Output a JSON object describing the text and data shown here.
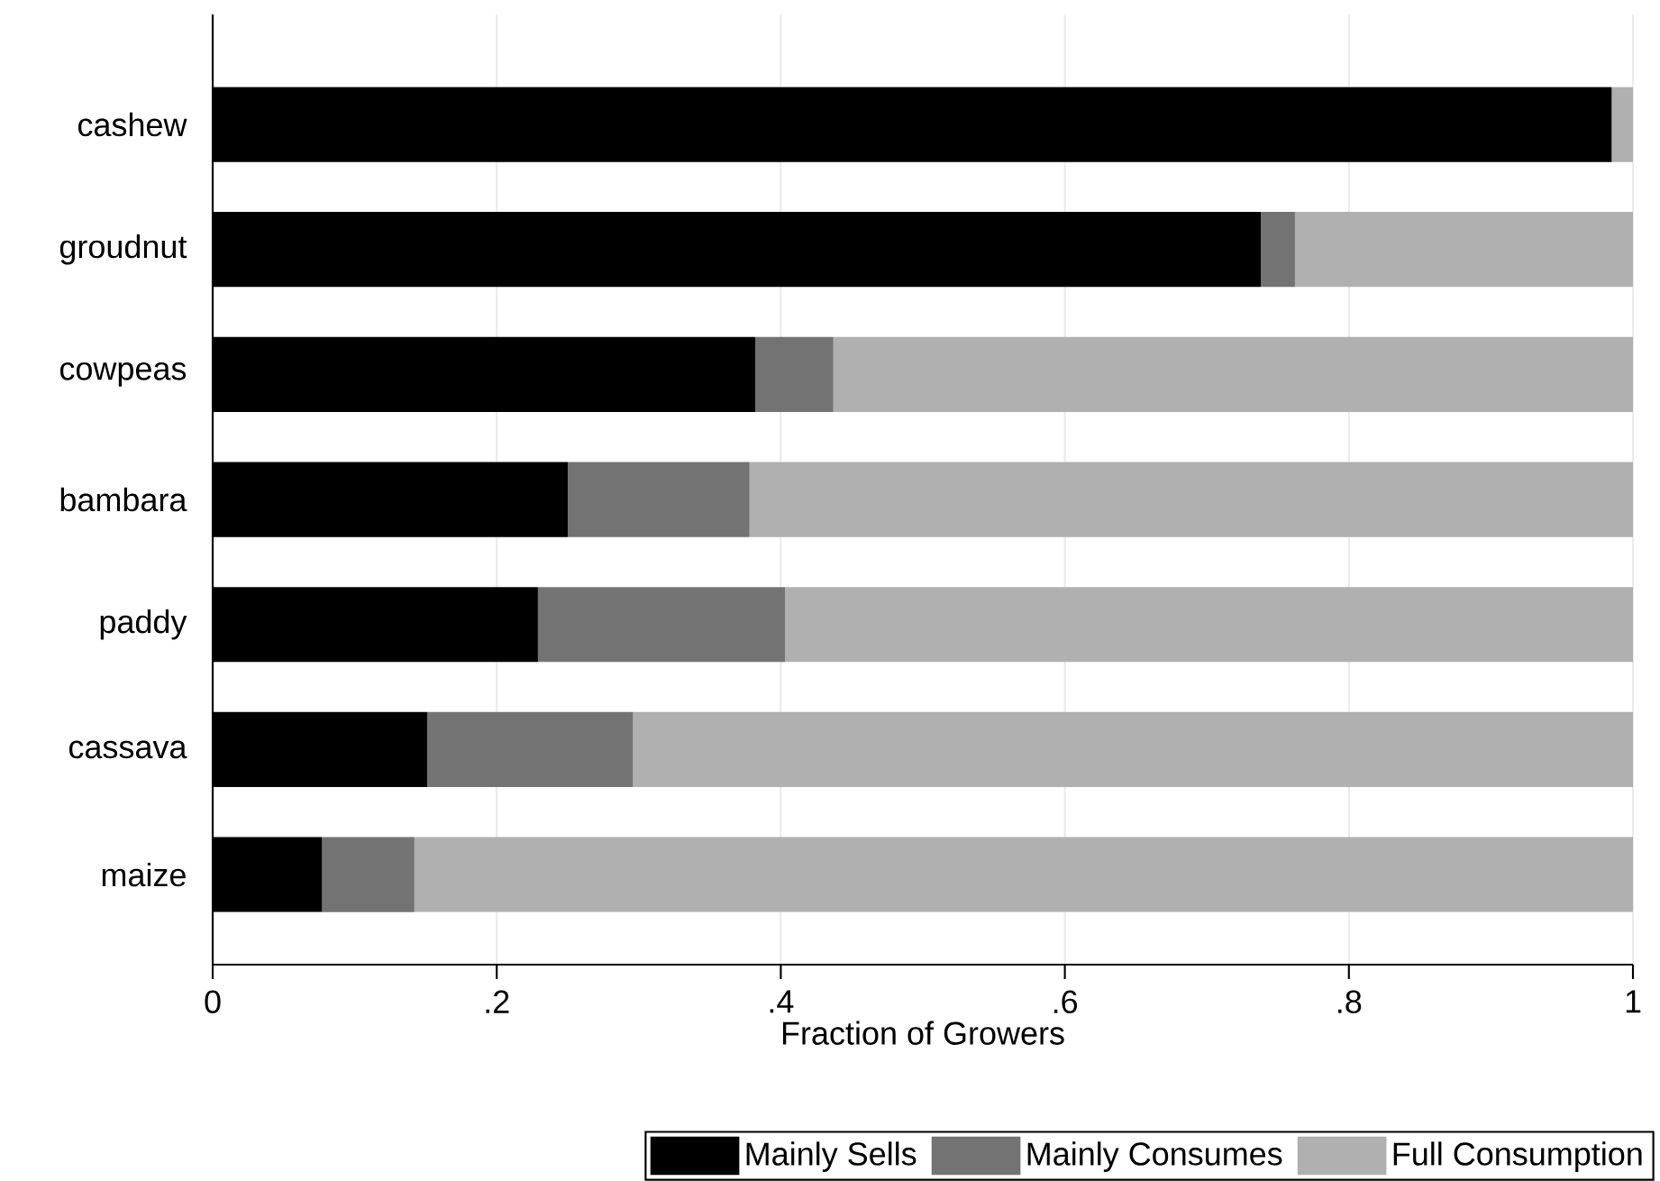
{
  "chart_data": {
    "type": "bar",
    "orientation": "horizontal",
    "stacked": true,
    "categories": [
      "cashew",
      "groudnut",
      "cowpeas",
      "bambara",
      "paddy",
      "cassava",
      "maize"
    ],
    "series": [
      {
        "name": "Mainly Sells",
        "color": "#000000",
        "values": [
          0.985,
          0.738,
          0.382,
          0.25,
          0.229,
          0.151,
          0.077
        ]
      },
      {
        "name": "Mainly Consumes",
        "color": "#737373",
        "values": [
          0,
          0.024,
          0.055,
          0.128,
          0.174,
          0.145,
          0.065
        ]
      },
      {
        "name": "Full Consumption",
        "color": "#b0b0b0",
        "values": [
          0.015,
          0.238,
          0.563,
          0.622,
          0.597,
          0.704,
          0.858
        ]
      }
    ],
    "xlabel": "Fraction of Growers",
    "xlim": [
      0,
      1
    ],
    "xticks": [
      0,
      {
        "value": 0.2,
        "label": ".2"
      },
      {
        "value": 0.4,
        "label": ".4"
      },
      {
        "value": 0.6,
        "label": ".6"
      },
      {
        "value": 0.8,
        "label": ".8"
      },
      1
    ],
    "grid": "x",
    "legend": "bottom"
  }
}
